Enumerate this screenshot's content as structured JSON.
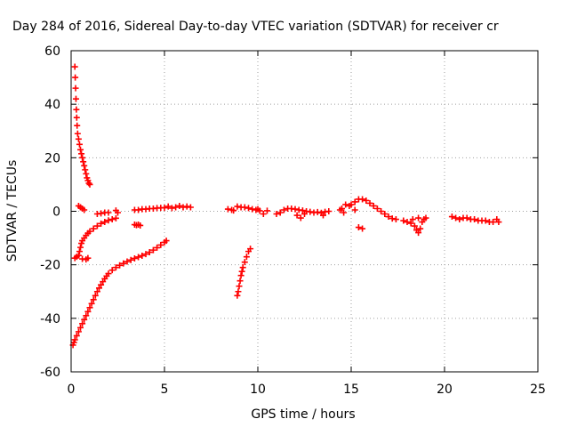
{
  "chart_data": {
    "type": "scatter",
    "title": "Day 284 of 2016, Sidereal Day-to-day VTEC variation (SDTVAR) for receiver cr",
    "xlabel": "GPS time / hours",
    "ylabel": "SDTVAR / TECUs",
    "xlim": [
      0,
      25
    ],
    "ylim": [
      -60,
      60
    ],
    "xticks": [
      "0",
      "5",
      "10",
      "15",
      "20",
      "25"
    ],
    "yticks": [
      "-60",
      "-40",
      "-20",
      "0",
      "20",
      "40",
      "60"
    ],
    "grid": true,
    "marker": "+",
    "series": [
      {
        "name": "SDTVAR",
        "color": "#ff0000",
        "points": [
          [
            0.1,
            -50.0
          ],
          [
            0.15,
            -49.0
          ],
          [
            0.2,
            -48.0
          ],
          [
            0.3,
            -46.5
          ],
          [
            0.4,
            -45.0
          ],
          [
            0.5,
            -43.5
          ],
          [
            0.6,
            -42.0
          ],
          [
            0.7,
            -40.5
          ],
          [
            0.8,
            -39.0
          ],
          [
            0.9,
            -37.5
          ],
          [
            1.0,
            -36.0
          ],
          [
            1.1,
            -34.5
          ],
          [
            1.2,
            -33.0
          ],
          [
            1.3,
            -31.5
          ],
          [
            1.4,
            -30.0
          ],
          [
            1.5,
            -28.7
          ],
          [
            1.6,
            -27.5
          ],
          [
            1.7,
            -26.3
          ],
          [
            1.8,
            -25.2
          ],
          [
            1.9,
            -24.2
          ],
          [
            2.0,
            -23.3
          ],
          [
            2.2,
            -22.0
          ],
          [
            2.4,
            -21.0
          ],
          [
            2.6,
            -20.2
          ],
          [
            2.8,
            -19.5
          ],
          [
            3.0,
            -18.8
          ],
          [
            3.2,
            -18.2
          ],
          [
            3.4,
            -17.6
          ],
          [
            3.6,
            -17.1
          ],
          [
            3.8,
            -16.6
          ],
          [
            4.0,
            -16.0
          ],
          [
            4.2,
            -15.3
          ],
          [
            4.4,
            -14.5
          ],
          [
            4.6,
            -13.6
          ],
          [
            4.8,
            -12.6
          ],
          [
            5.0,
            -11.6
          ],
          [
            5.1,
            -11.0
          ],
          [
            0.2,
            54.0
          ],
          [
            0.22,
            50.0
          ],
          [
            0.24,
            46.0
          ],
          [
            0.26,
            42.0
          ],
          [
            0.28,
            38.0
          ],
          [
            0.3,
            35.0
          ],
          [
            0.32,
            32.0
          ],
          [
            0.35,
            29.0
          ],
          [
            0.4,
            27.0
          ],
          [
            0.45,
            25.0
          ],
          [
            0.5,
            23.0
          ],
          [
            0.55,
            21.5
          ],
          [
            0.6,
            20.0
          ],
          [
            0.65,
            18.5
          ],
          [
            0.7,
            17.0
          ],
          [
            0.75,
            15.5
          ],
          [
            0.8,
            14.0
          ],
          [
            0.85,
            12.5
          ],
          [
            0.9,
            11.5
          ],
          [
            0.95,
            10.5
          ],
          [
            1.0,
            10.0
          ],
          [
            0.2,
            -17.5
          ],
          [
            0.3,
            -17.0
          ],
          [
            0.4,
            -16.5
          ],
          [
            0.45,
            -15.0
          ],
          [
            0.5,
            -13.5
          ],
          [
            0.55,
            -12.0
          ],
          [
            0.6,
            -11.0
          ],
          [
            0.7,
            -10.0
          ],
          [
            0.8,
            -9.0
          ],
          [
            0.9,
            -8.2
          ],
          [
            1.0,
            -7.5
          ],
          [
            1.2,
            -6.5
          ],
          [
            1.4,
            -5.5
          ],
          [
            1.6,
            -4.6
          ],
          [
            1.8,
            -4.0
          ],
          [
            2.0,
            -3.4
          ],
          [
            2.2,
            -3.0
          ],
          [
            2.4,
            -2.6
          ],
          [
            0.4,
            2.0
          ],
          [
            0.5,
            1.5
          ],
          [
            0.6,
            1.0
          ],
          [
            0.7,
            0.5
          ],
          [
            0.8,
            -18.0
          ],
          [
            0.9,
            -17.5
          ],
          [
            0.6,
            -17.8
          ],
          [
            1.4,
            -1.0
          ],
          [
            1.6,
            -0.8
          ],
          [
            1.8,
            -0.5
          ],
          [
            2.0,
            -0.5
          ],
          [
            2.4,
            0.3
          ],
          [
            2.5,
            -0.5
          ],
          [
            3.4,
            -5.0
          ],
          [
            3.5,
            -5.2
          ],
          [
            3.6,
            -5.0
          ],
          [
            3.7,
            -5.3
          ],
          [
            3.4,
            0.5
          ],
          [
            3.6,
            0.5
          ],
          [
            3.8,
            0.8
          ],
          [
            4.0,
            0.8
          ],
          [
            4.2,
            1.0
          ],
          [
            4.4,
            1.0
          ],
          [
            4.6,
            1.2
          ],
          [
            4.8,
            1.3
          ],
          [
            5.0,
            1.3
          ],
          [
            5.2,
            1.8
          ],
          [
            5.4,
            1.2
          ],
          [
            5.6,
            1.5
          ],
          [
            5.8,
            2.0
          ],
          [
            6.0,
            1.5
          ],
          [
            6.2,
            1.8
          ],
          [
            6.4,
            1.5
          ],
          [
            8.4,
            0.8
          ],
          [
            8.6,
            0.5
          ],
          [
            8.7,
            0.3
          ],
          [
            8.9,
            -31.5
          ],
          [
            8.95,
            -30.0
          ],
          [
            9.0,
            -28.0
          ],
          [
            9.05,
            -26.0
          ],
          [
            9.1,
            -24.0
          ],
          [
            9.15,
            -22.5
          ],
          [
            9.2,
            -21.0
          ],
          [
            9.3,
            -19.0
          ],
          [
            9.4,
            -17.0
          ],
          [
            9.5,
            -15.0
          ],
          [
            9.6,
            -14.0
          ],
          [
            8.9,
            1.8
          ],
          [
            9.1,
            1.5
          ],
          [
            9.3,
            1.5
          ],
          [
            9.5,
            1.2
          ],
          [
            9.7,
            0.8
          ],
          [
            9.9,
            0.5
          ],
          [
            10.0,
            0.8
          ],
          [
            10.1,
            0.2
          ],
          [
            10.3,
            -1.0
          ],
          [
            10.5,
            0.2
          ],
          [
            11.0,
            -1.0
          ],
          [
            11.2,
            -0.5
          ],
          [
            11.4,
            0.5
          ],
          [
            11.6,
            1.0
          ],
          [
            11.8,
            1.0
          ],
          [
            12.0,
            0.8
          ],
          [
            12.2,
            0.5
          ],
          [
            12.4,
            0.3
          ],
          [
            12.6,
            0.0
          ],
          [
            12.8,
            -0.2
          ],
          [
            13.0,
            -0.5
          ],
          [
            13.2,
            -0.3
          ],
          [
            13.4,
            -0.6
          ],
          [
            13.6,
            -0.2
          ],
          [
            13.8,
            0.0
          ],
          [
            12.1,
            -1.5
          ],
          [
            12.5,
            -1.0
          ],
          [
            13.5,
            -1.5
          ],
          [
            12.3,
            -2.5
          ],
          [
            14.4,
            0.5
          ],
          [
            14.5,
            1.0
          ],
          [
            14.6,
            -0.5
          ],
          [
            14.7,
            2.5
          ],
          [
            14.9,
            2.0
          ],
          [
            15.0,
            2.5
          ],
          [
            15.2,
            3.5
          ],
          [
            15.4,
            4.5
          ],
          [
            15.6,
            4.5
          ],
          [
            15.8,
            4.0
          ],
          [
            16.0,
            3.0
          ],
          [
            16.2,
            2.0
          ],
          [
            16.4,
            1.0
          ],
          [
            16.6,
            0.0
          ],
          [
            16.8,
            -1.0
          ],
          [
            17.0,
            -2.0
          ],
          [
            17.2,
            -2.7
          ],
          [
            17.4,
            -3.0
          ],
          [
            15.2,
            0.5
          ],
          [
            15.4,
            -6.0
          ],
          [
            15.6,
            -6.5
          ],
          [
            17.8,
            -3.5
          ],
          [
            18.0,
            -4.0
          ],
          [
            18.2,
            -4.5
          ],
          [
            18.4,
            -5.5
          ],
          [
            18.5,
            -7.0
          ],
          [
            18.6,
            -8.0
          ],
          [
            18.7,
            -6.5
          ],
          [
            18.8,
            -4.0
          ],
          [
            18.9,
            -3.0
          ],
          [
            19.0,
            -2.5
          ],
          [
            18.3,
            -3.0
          ],
          [
            18.6,
            -2.5
          ],
          [
            20.4,
            -2.0
          ],
          [
            20.6,
            -2.5
          ],
          [
            20.8,
            -3.0
          ],
          [
            21.0,
            -2.5
          ],
          [
            21.2,
            -2.5
          ],
          [
            21.4,
            -3.0
          ],
          [
            21.6,
            -3.0
          ],
          [
            21.8,
            -3.5
          ],
          [
            22.0,
            -3.5
          ],
          [
            22.2,
            -3.5
          ],
          [
            22.4,
            -4.0
          ],
          [
            22.6,
            -4.0
          ],
          [
            22.8,
            -3.0
          ],
          [
            22.9,
            -4.0
          ]
        ]
      }
    ]
  }
}
